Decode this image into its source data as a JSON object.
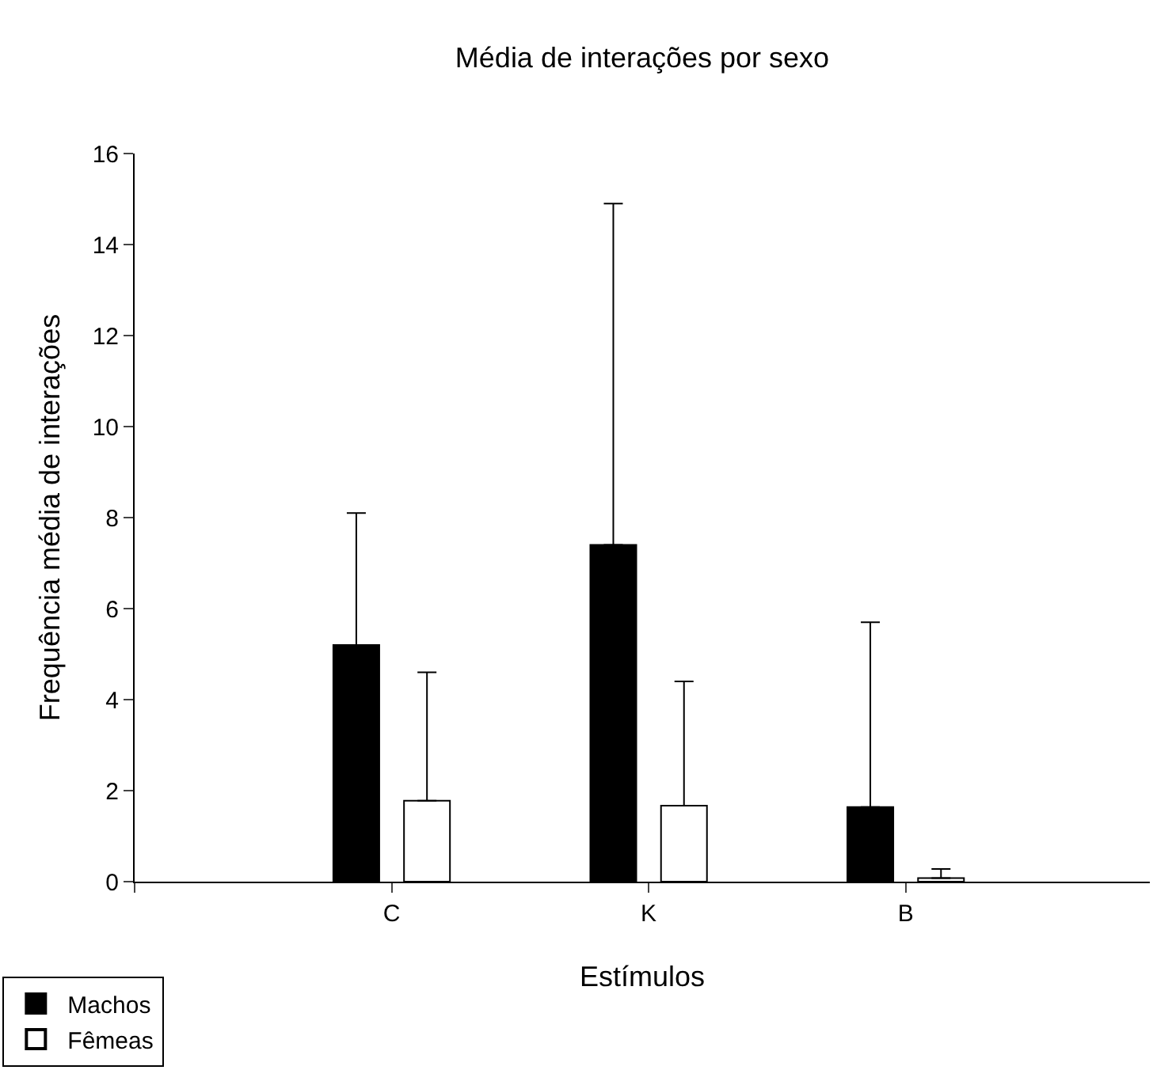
{
  "chart_data": {
    "type": "bar",
    "title": "Média de interações por sexo",
    "xlabel": "Estímulos",
    "ylabel": "Frequência média de interações",
    "categories": [
      "C",
      "K",
      "B"
    ],
    "series": [
      {
        "name": "Machos",
        "color": "#000000",
        "values": [
          5.2,
          7.4,
          1.64
        ],
        "errors": [
          [
            5.2,
            8.1
          ],
          [
            7.4,
            14.9
          ],
          [
            1.64,
            5.7
          ]
        ]
      },
      {
        "name": "Fêmeas",
        "color": "#ffffff",
        "values": [
          1.78,
          1.67,
          0.08
        ],
        "errors": [
          [
            1.78,
            4.6
          ],
          [
            1.67,
            4.4
          ],
          [
            0.08,
            0.28
          ]
        ]
      }
    ],
    "ylim": [
      0,
      16
    ],
    "yticks": [
      0,
      2,
      4,
      6,
      8,
      10,
      12,
      14,
      16
    ],
    "legend": "bottom left"
  }
}
